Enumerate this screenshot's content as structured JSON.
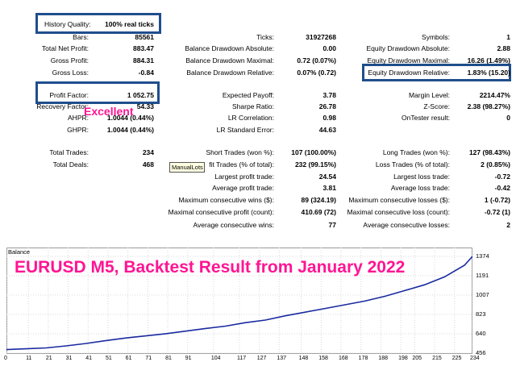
{
  "report": {
    "history_quality": {
      "label": "History Quality:",
      "value": "100% real ticks"
    },
    "col1": [
      {
        "label": "Bars:",
        "value": "85561"
      },
      {
        "label": "Total Net Profit:",
        "value": "883.47"
      },
      {
        "label": "Gross Profit:",
        "value": "884.31"
      },
      {
        "label": "Gross Loss:",
        "value": "-0.84"
      },
      {
        "label": "Profit Factor:",
        "value": "1 052.75"
      },
      {
        "label": "Recovery Factor:",
        "value": "54.33"
      },
      {
        "label": "AHPR:",
        "value": "1.0044 (0.44%)"
      },
      {
        "label": "GHPR:",
        "value": "1.0044 (0.44%)"
      },
      {
        "label": "Total Trades:",
        "value": "234"
      },
      {
        "label": "Total Deals:",
        "value": "468"
      }
    ],
    "col2": [
      {
        "label": "Ticks:",
        "value": "31927268"
      },
      {
        "label": "Balance Drawdown Absolute:",
        "value": "0.00"
      },
      {
        "label": "Balance Drawdown Maximal:",
        "value": "0.72 (0.07%)"
      },
      {
        "label": "Balance Drawdown Relative:",
        "value": "0.07% (0.72)"
      },
      {
        "label": "Expected Payoff:",
        "value": "3.78"
      },
      {
        "label": "Sharpe Ratio:",
        "value": "26.78"
      },
      {
        "label": "LR Correlation:",
        "value": "0.98"
      },
      {
        "label": "LR Standard Error:",
        "value": "44.63"
      },
      {
        "label": "Short Trades (won %):",
        "value": "107 (100.00%)"
      },
      {
        "label": "fit Trades (% of total):",
        "value": "232 (99.15%)"
      },
      {
        "label": "Largest profit trade:",
        "value": "24.54"
      },
      {
        "label": "Average profit trade:",
        "value": "3.81"
      },
      {
        "label": "Maximum consecutive wins ($):",
        "value": "89 (324.19)"
      },
      {
        "label": "Maximal consecutive profit (count):",
        "value": "410.69 (72)"
      },
      {
        "label": "Average consecutive wins:",
        "value": "77"
      }
    ],
    "col3": [
      {
        "label": "Symbols:",
        "value": "1"
      },
      {
        "label": "Equity Drawdown Absolute:",
        "value": "2.88"
      },
      {
        "label": "Equity Drawdown Maximal:",
        "value": "16.26 (1.49%)"
      },
      {
        "label": "Equity Drawdown Relative:",
        "value": "1.83% (15.20)"
      },
      {
        "label": "Margin Level:",
        "value": "2214.47%"
      },
      {
        "label": "Z-Score:",
        "value": "2.38 (98.27%)"
      },
      {
        "label": "OnTester result:",
        "value": "0"
      },
      {
        "label": "Long Trades (won %):",
        "value": "127 (98.43%)"
      },
      {
        "label": "Loss Trades (% of total):",
        "value": "2 (0.85%)"
      },
      {
        "label": "Largest loss trade:",
        "value": "-0.72"
      },
      {
        "label": "Average loss trade:",
        "value": "-0.42"
      },
      {
        "label": "Maximum consecutive losses ($):",
        "value": "1 (-0.72)"
      },
      {
        "label": "Maximal consecutive loss (count):",
        "value": "-0.72 (1)"
      },
      {
        "label": "Average consecutive losses:",
        "value": "2"
      }
    ],
    "excellent_note": "Excellent",
    "tooltip": "ManualLots"
  },
  "chart_data": {
    "type": "line",
    "panel_label": "Balance",
    "title": "EURUSD M5, Backtest Result from January 2022",
    "ylim": [
      456,
      1374
    ],
    "yticks": [
      "1374",
      "1191",
      "1007",
      "823",
      "640",
      "456"
    ],
    "xticks": [
      "0",
      "11",
      "21",
      "31",
      "41",
      "51",
      "61",
      "71",
      "81",
      "91",
      "104",
      "117",
      "127",
      "137",
      "148",
      "158",
      "168",
      "178",
      "188",
      "198",
      "205",
      "215",
      "225",
      "234"
    ],
    "xlim": [
      0,
      234
    ],
    "series": [
      {
        "color": "#1a2aa0",
        "x": [
          0,
          10,
          20,
          30,
          40,
          50,
          60,
          70,
          80,
          90,
          100,
          110,
          120,
          130,
          140,
          150,
          160,
          170,
          180,
          190,
          200,
          210,
          220,
          230,
          234
        ],
        "values": [
          490,
          497,
          506,
          525,
          548,
          575,
          600,
          620,
          640,
          665,
          690,
          712,
          745,
          770,
          810,
          845,
          880,
          915,
          950,
          995,
          1050,
          1105,
          1180,
          1290,
          1374
        ]
      }
    ],
    "grid": true
  }
}
